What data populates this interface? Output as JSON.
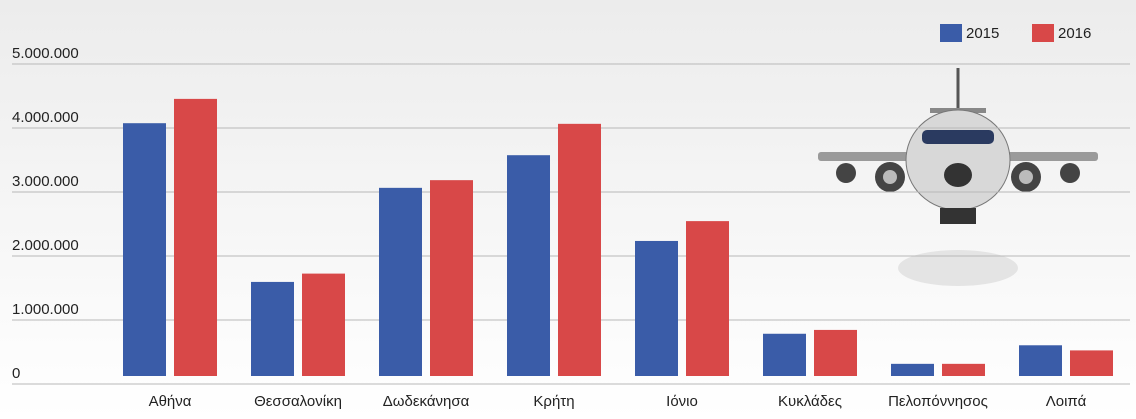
{
  "chart_data": {
    "type": "bar",
    "categories": [
      "Αθήνα",
      "Θεσσαλονίκη",
      "Δωδεκάνησα",
      "Κρήτη",
      "Ιόνιο",
      "Κυκλάδες",
      "Πελοπόννησος",
      "Λοιπά"
    ],
    "series": [
      {
        "name": "2015",
        "color": "#3a5ca8",
        "values": [
          3950000,
          1470000,
          2940000,
          3450000,
          2110000,
          660000,
          190000,
          480000
        ]
      },
      {
        "name": "2016",
        "color": "#d84848",
        "values": [
          4330000,
          1600000,
          3060000,
          3940000,
          2420000,
          720000,
          190000,
          400000
        ]
      }
    ],
    "ylim": [
      0,
      5000000
    ],
    "yticks": [
      0,
      {
        "value": 1000000,
        "label": "1.000.000"
      },
      {
        "value": 2000000,
        "label": "2.000.000"
      },
      {
        "value": 3000000,
        "label": "3.000.000"
      },
      {
        "value": 4000000,
        "label": "4.000.000"
      },
      {
        "value": 5000000,
        "label": "5.000.000"
      }
    ],
    "grid": true,
    "legend": "top-right"
  }
}
